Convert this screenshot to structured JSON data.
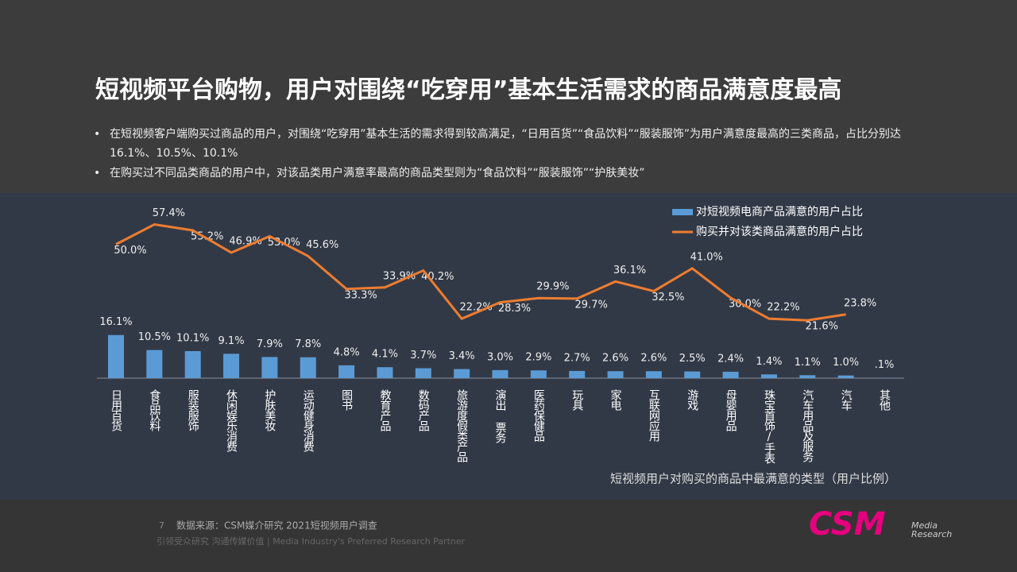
{
  "header": {
    "title": "短视频平台购物，用户对围绕“吃穿用”基本生活需求的商品满意度最高",
    "bullets": [
      "在短视频客户端购买过商品的用户，对围绕“吃穿用”基本生活的需求得到较高满足，“日用百货”“食品饮料”“服装服饰”为用户满意度最高的三类商品，占比分别达16.1%、10.5%、10.1%",
      "在购买过不同品类商品的用户中，对该品类用户满意率最高的商品类型则为“食品饮料”“服装服饰”“护肤美妆”"
    ]
  },
  "chart_data": {
    "type": "bar",
    "title": "短视频用户对购买的商品中最满意的类型（用户比例）",
    "categories": [
      "日用百货",
      "食品饮料",
      "服装服饰",
      "休闲娱乐消费",
      "护肤美妆",
      "运动健身消费",
      "图书",
      "教育产品",
      "数码产品",
      "旅游度假类产品",
      "演出 票务",
      "医药保健品",
      "玩具",
      "家电",
      "互联网应用",
      "游戏",
      "母婴用品",
      "珠宝首饰/手表",
      "汽车用品及服务",
      "汽车",
      "其他"
    ],
    "series": [
      {
        "name": "对短视频电商产品满意的用户占比",
        "type": "bar",
        "color": "#5b9bd5",
        "values": [
          16.1,
          10.5,
          10.1,
          9.1,
          7.9,
          7.8,
          4.8,
          4.1,
          3.7,
          3.4,
          3.0,
          2.9,
          2.7,
          2.6,
          2.6,
          2.5,
          2.4,
          1.4,
          1.1,
          1.0,
          0.1
        ],
        "value_labels": [
          "16.1%",
          "10.5%",
          "10.1%",
          "9.1%",
          "7.9%",
          "7.8%",
          "4.8%",
          "4.1%",
          "3.7%",
          "3.4%",
          "3.0%",
          "2.9%",
          "2.7%",
          "2.6%",
          "2.6%",
          "2.5%",
          "2.4%",
          "1.4%",
          "1.1%",
          "1.0%",
          ".1%"
        ]
      },
      {
        "name": "购买并对该类商品满意的用户占比",
        "type": "line",
        "color": "#ed7d31",
        "values": [
          50.0,
          57.4,
          55.2,
          46.9,
          53.0,
          45.6,
          33.3,
          33.9,
          40.2,
          22.2,
          28.3,
          29.9,
          29.7,
          36.1,
          32.5,
          41.0,
          30.0,
          22.2,
          21.6,
          23.8,
          null
        ],
        "value_labels": [
          "50.0%",
          "57.4%",
          "55.2%",
          "46.9%",
          "53.0%",
          "45.6%",
          "33.3%",
          "33.9%",
          "40.2%",
          "22.2%",
          "28.3%",
          "29.9%",
          "29.7%",
          "36.1%",
          "32.5%",
          "41.0%",
          "30.0%",
          "22.2%",
          "21.6%",
          "23.8%",
          null
        ]
      }
    ],
    "legend": "top-right"
  },
  "footer": {
    "page": "7",
    "source": "数据来源：CSM媒介研究 2021短视频用户调查",
    "tagline": "引领受众研究 沟通传媒价值 | Media Industry's Preferred Research Partner",
    "logo": "CSM",
    "logo_sub1": "Media",
    "logo_sub2": "Research"
  }
}
